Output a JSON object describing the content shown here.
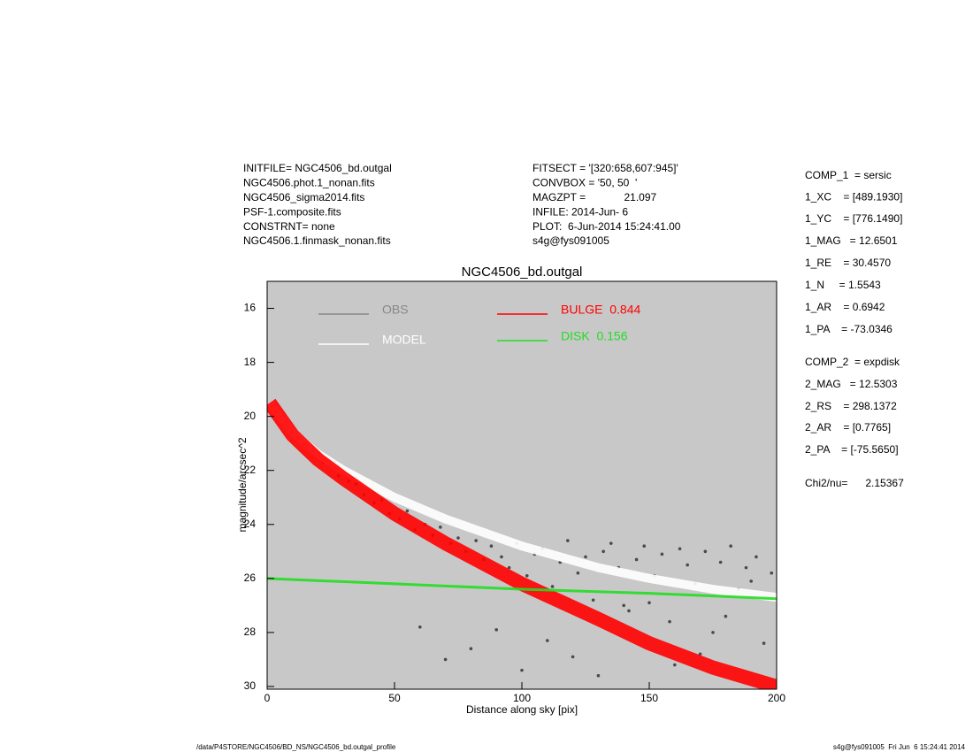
{
  "chart_data": {
    "type": "scatter",
    "title": "NGC4506_bd.outgal",
    "x_label": "Distance along sky [pix]",
    "y_label": "magnitude/arcsec^2",
    "xlim": [
      0,
      200
    ],
    "ylim": [
      30.1,
      15
    ],
    "xticks": [
      0,
      50,
      100,
      150,
      200
    ],
    "yticks": [
      16,
      18,
      20,
      22,
      24,
      26,
      28,
      30
    ],
    "background": "#c8c8c8",
    "series": [
      {
        "name": "OBS",
        "color": "#4a4a4a",
        "legend_color": "#888888",
        "mode": "markers",
        "x": [
          2,
          5,
          8,
          12,
          15,
          18,
          22,
          25,
          28,
          32,
          35,
          38,
          42,
          45,
          48,
          52,
          55,
          58,
          62,
          65,
          68,
          72,
          75,
          78,
          82,
          85,
          88,
          92,
          95,
          98,
          102,
          105,
          108,
          112,
          115,
          118,
          122,
          125,
          128,
          132,
          135,
          138,
          142,
          145,
          148,
          152,
          155,
          158,
          162,
          165,
          168,
          172,
          175,
          178,
          182,
          185,
          188,
          192,
          195,
          198,
          60,
          80,
          100,
          120,
          140,
          160,
          180,
          70,
          90,
          110,
          130,
          150,
          170,
          190
        ],
        "y": [
          19.6,
          20.0,
          20.4,
          20.9,
          21.1,
          21.3,
          21.7,
          21.8,
          22.2,
          22.4,
          22.5,
          22.9,
          23.2,
          23.1,
          23.6,
          23.8,
          23.5,
          24.2,
          24.0,
          24.4,
          24.1,
          24.7,
          24.5,
          25.0,
          24.6,
          25.3,
          24.8,
          25.2,
          25.6,
          24.7,
          25.9,
          25.1,
          24.9,
          26.3,
          25.4,
          24.6,
          25.8,
          25.2,
          26.8,
          25.0,
          24.7,
          25.6,
          27.2,
          25.3,
          24.8,
          25.9,
          25.1,
          27.6,
          24.9,
          25.5,
          26.2,
          25.0,
          28.0,
          25.4,
          24.8,
          26.4,
          25.6,
          25.2,
          28.4,
          25.8,
          27.8,
          28.6,
          29.4,
          28.9,
          27.0,
          29.2,
          27.4,
          29.0,
          27.9,
          28.3,
          29.6,
          26.9,
          28.8,
          26.1
        ]
      },
      {
        "name": "MODEL",
        "color": "#ffffff",
        "mode": "lines",
        "x": [
          1,
          10,
          20,
          30,
          50,
          70,
          100,
          130,
          150,
          175,
          200
        ],
        "y": [
          19.5,
          20.6,
          21.4,
          22.0,
          23.0,
          23.8,
          24.8,
          25.6,
          26.0,
          26.4,
          26.7
        ]
      },
      {
        "name": "BULGE  0.844",
        "color": "#ff0000",
        "mode": "lines",
        "x": [
          1,
          10,
          20,
          30,
          50,
          70,
          100,
          130,
          150,
          175,
          200
        ],
        "y": [
          19.5,
          20.7,
          21.6,
          22.3,
          23.6,
          24.7,
          26.2,
          27.5,
          28.4,
          29.3,
          30.0
        ]
      },
      {
        "name": "DISK  0.156",
        "color": "#22dd22",
        "mode": "lines",
        "x": [
          0,
          50,
          100,
          150,
          200
        ],
        "y": [
          26.0,
          26.2,
          26.4,
          26.55,
          26.75
        ]
      }
    ],
    "header_left": [
      "INITFILE= NGC4506_bd.outgal",
      "NGC4506.phot.1_nonan.fits",
      "NGC4506_sigma2014.fits",
      "PSF-1.composite.fits",
      "CONSTRNT= none",
      "NGC4506.1.finmask_nonan.fits"
    ],
    "header_middle": [
      "FITSECT = '[320:658,607:945]'",
      "CONVBOX = '50, 50  '",
      "MAGZPT =             21.097",
      "INFILE: 2014-Jun- 6",
      "PLOT:  6-Jun-2014 15:24:41.00",
      "s4g@fys091005"
    ],
    "parameters": [
      "COMP_1  = sersic",
      "1_XC    = [489.1930]",
      "1_YC    = [776.1490]",
      "1_MAG   = 12.6501",
      "1_RE    = 30.4570",
      "1_N     = 1.5543",
      "1_AR    = 0.6942",
      "1_PA    = -73.0346",
      "COMP_2  = expdisk",
      "2_MAG   = 12.5303",
      "2_RS    = 298.1372",
      "2_AR    = [0.7765]",
      "2_PA    = [-75.5650]",
      "Chi2/nu=      2.15367"
    ],
    "footer_left": "/data/P4STORE/NGC4506/BD_NS/NGC4506_bd.outgal_profile",
    "footer_right": "s4g@fys091005  Fri Jun  6 15:24:41 2014"
  }
}
